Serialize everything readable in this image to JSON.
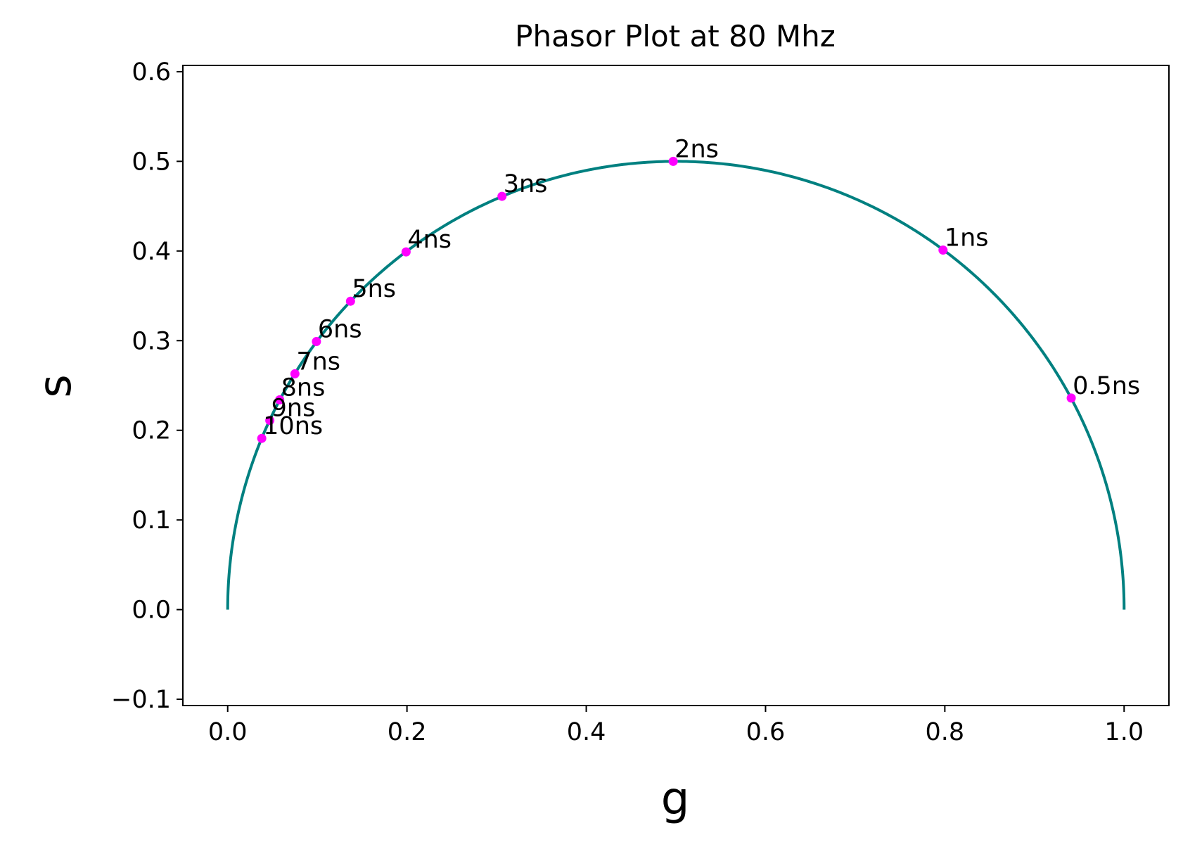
{
  "chart_data": {
    "type": "scatter",
    "title": "Phasor Plot at 80 Mhz",
    "xlabel": "g",
    "ylabel": "s",
    "xlim": [
      -0.05,
      1.05
    ],
    "ylim": [
      -0.107,
      0.607
    ],
    "xticks": [
      0.0,
      0.2,
      0.4,
      0.6,
      0.8,
      1.0
    ],
    "xtick_labels": [
      "0.0",
      "0.2",
      "0.4",
      "0.6",
      "0.8",
      "1.0"
    ],
    "yticks": [
      -0.1,
      0.0,
      0.1,
      0.2,
      0.3,
      0.4,
      0.5,
      0.6
    ],
    "ytick_labels": [
      "−0.1",
      "0.0",
      "0.1",
      "0.2",
      "0.3",
      "0.4",
      "0.5",
      "0.6"
    ],
    "grid": false,
    "legend": "none",
    "curve": {
      "name": "",
      "shape": "universal semicircle",
      "center": [
        0.5,
        0.0
      ],
      "radius": 0.5,
      "color": "#008080"
    },
    "points": [
      {
        "label": "0.5ns",
        "g": 0.941,
        "s": 0.236
      },
      {
        "label": "1ns",
        "g": 0.798,
        "s": 0.401
      },
      {
        "label": "2ns",
        "g": 0.497,
        "s": 0.5
      },
      {
        "label": "3ns",
        "g": 0.306,
        "s": 0.461
      },
      {
        "label": "4ns",
        "g": 0.199,
        "s": 0.399
      },
      {
        "label": "5ns",
        "g": 0.137,
        "s": 0.344
      },
      {
        "label": "6ns",
        "g": 0.099,
        "s": 0.299
      },
      {
        "label": "7ns",
        "g": 0.075,
        "s": 0.263
      },
      {
        "label": "8ns",
        "g": 0.058,
        "s": 0.234
      },
      {
        "label": "9ns",
        "g": 0.047,
        "s": 0.211
      },
      {
        "label": "10ns",
        "g": 0.038,
        "s": 0.191
      }
    ],
    "point_color": "#ff00ff"
  }
}
